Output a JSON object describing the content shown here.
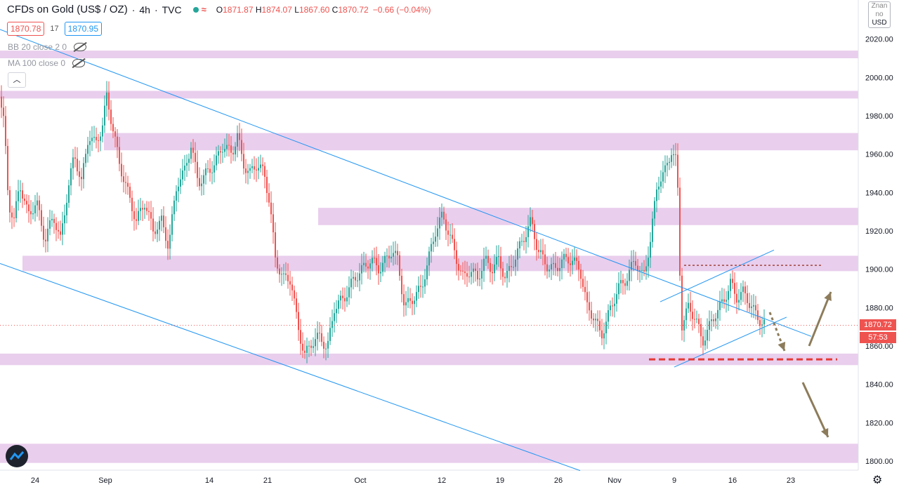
{
  "header": {
    "symbol_title": "CFDs on Gold (US$ / OZ)",
    "interval": "4h",
    "source": "TVC",
    "open_label": "O",
    "open": "1871.87",
    "high_label": "H",
    "high": "1874.07",
    "low_label": "L",
    "low": "1867.60",
    "close_label": "C",
    "close": "1870.72",
    "change": "−0.66 (−0.04%)"
  },
  "quotes": {
    "bid": "1870.78",
    "spread": "17",
    "ask": "1870.95"
  },
  "indicators": [
    {
      "label": "BB 20 close 2 0"
    },
    {
      "label": "MA 100 close 0"
    }
  ],
  "axis_currency": {
    "top": "Znan no",
    "code": "USD"
  },
  "last_price_label": "1870.72",
  "countdown_label": "57:53",
  "colors": {
    "up": "#26a69a",
    "down": "#ef5350",
    "zone": "#e1bee7",
    "trendline": "#2196f3",
    "arrow": "#8d7c5b",
    "support_dash": "#e53935"
  },
  "icons": [
    "eye-crossed-icon",
    "chevron-up-icon",
    "tradingview-logo-icon",
    "gear-icon"
  ],
  "chart_data": {
    "type": "candlestick",
    "title": "CFDs on Gold (US$ / OZ)",
    "xlabel": "",
    "ylabel": "",
    "ylim": [
      1795,
      2035
    ],
    "y_ticks": [
      1800,
      1820,
      1840,
      1860,
      1880,
      1900,
      1920,
      1940,
      1960,
      1980,
      2000,
      2020
    ],
    "x_ticks": [
      "24",
      "Sep",
      "14",
      "21",
      "Oct",
      "12",
      "19",
      "26",
      "Nov",
      "9",
      "16",
      "23"
    ],
    "grid": false,
    "zones": [
      [
        2010,
        2014
      ],
      [
        1989,
        1993
      ],
      [
        1962,
        1971
      ],
      [
        1923,
        1932
      ],
      [
        1899,
        1907
      ],
      [
        1850,
        1856
      ],
      [
        1799,
        1809
      ]
    ],
    "support_level": 1853,
    "resistance_dotted": 1902,
    "last_price": 1870.72,
    "price_path": [
      [
        0,
        1990
      ],
      [
        6,
        1975
      ],
      [
        12,
        1935
      ],
      [
        20,
        1925
      ],
      [
        28,
        1945
      ],
      [
        40,
        1928
      ],
      [
        52,
        1935
      ],
      [
        64,
        1915
      ],
      [
        76,
        1928
      ],
      [
        86,
        1915
      ],
      [
        96,
        1940
      ],
      [
        106,
        1960
      ],
      [
        116,
        1945
      ],
      [
        126,
        1970
      ],
      [
        136,
        1965
      ],
      [
        146,
        1975
      ],
      [
        152,
        1990
      ],
      [
        160,
        1975
      ],
      [
        170,
        1955
      ],
      [
        182,
        1940
      ],
      [
        194,
        1925
      ],
      [
        206,
        1935
      ],
      [
        218,
        1920
      ],
      [
        230,
        1925
      ],
      [
        240,
        1912
      ],
      [
        252,
        1945
      ],
      [
        262,
        1950
      ],
      [
        272,
        1965
      ],
      [
        282,
        1945
      ],
      [
        294,
        1950
      ],
      [
        306,
        1955
      ],
      [
        318,
        1965
      ],
      [
        330,
        1960
      ],
      [
        338,
        1970
      ],
      [
        346,
        1955
      ],
      [
        356,
        1950
      ],
      [
        366,
        1955
      ],
      [
        376,
        1950
      ],
      [
        384,
        1935
      ],
      [
        392,
        1905
      ],
      [
        404,
        1895
      ],
      [
        414,
        1895
      ],
      [
        424,
        1870
      ],
      [
        434,
        1855
      ],
      [
        444,
        1862
      ],
      [
        456,
        1865
      ],
      [
        466,
        1858
      ],
      [
        476,
        1880
      ],
      [
        490,
        1885
      ],
      [
        504,
        1895
      ],
      [
        516,
        1900
      ],
      [
        528,
        1905
      ],
      [
        540,
        1900
      ],
      [
        550,
        1905
      ],
      [
        558,
        1910
      ],
      [
        566,
        1905
      ],
      [
        576,
        1880
      ],
      [
        588,
        1885
      ],
      [
        600,
        1890
      ],
      [
        610,
        1905
      ],
      [
        620,
        1920
      ],
      [
        630,
        1928
      ],
      [
        640,
        1918
      ],
      [
        650,
        1905
      ],
      [
        660,
        1895
      ],
      [
        670,
        1900
      ],
      [
        680,
        1895
      ],
      [
        690,
        1905
      ],
      [
        700,
        1900
      ],
      [
        710,
        1905
      ],
      [
        720,
        1895
      ],
      [
        732,
        1905
      ],
      [
        744,
        1915
      ],
      [
        756,
        1925
      ],
      [
        766,
        1910
      ],
      [
        778,
        1902
      ],
      [
        790,
        1900
      ],
      [
        802,
        1905
      ],
      [
        814,
        1905
      ],
      [
        826,
        1900
      ],
      [
        836,
        1880
      ],
      [
        846,
        1875
      ],
      [
        856,
        1865
      ],
      [
        868,
        1878
      ],
      [
        880,
        1890
      ],
      [
        892,
        1895
      ],
      [
        904,
        1905
      ],
      [
        916,
        1895
      ],
      [
        926,
        1915
      ],
      [
        936,
        1945
      ],
      [
        946,
        1950
      ],
      [
        956,
        1962
      ],
      [
        964,
        1955
      ],
      [
        970,
        1870
      ],
      [
        980,
        1880
      ],
      [
        990,
        1875
      ],
      [
        1000,
        1862
      ],
      [
        1010,
        1870
      ],
      [
        1020,
        1878
      ],
      [
        1030,
        1883
      ],
      [
        1040,
        1893
      ],
      [
        1048,
        1885
      ],
      [
        1058,
        1888
      ],
      [
        1068,
        1882
      ],
      [
        1078,
        1875
      ],
      [
        1086,
        1872
      ],
      [
        1092,
        1870.72
      ]
    ]
  }
}
